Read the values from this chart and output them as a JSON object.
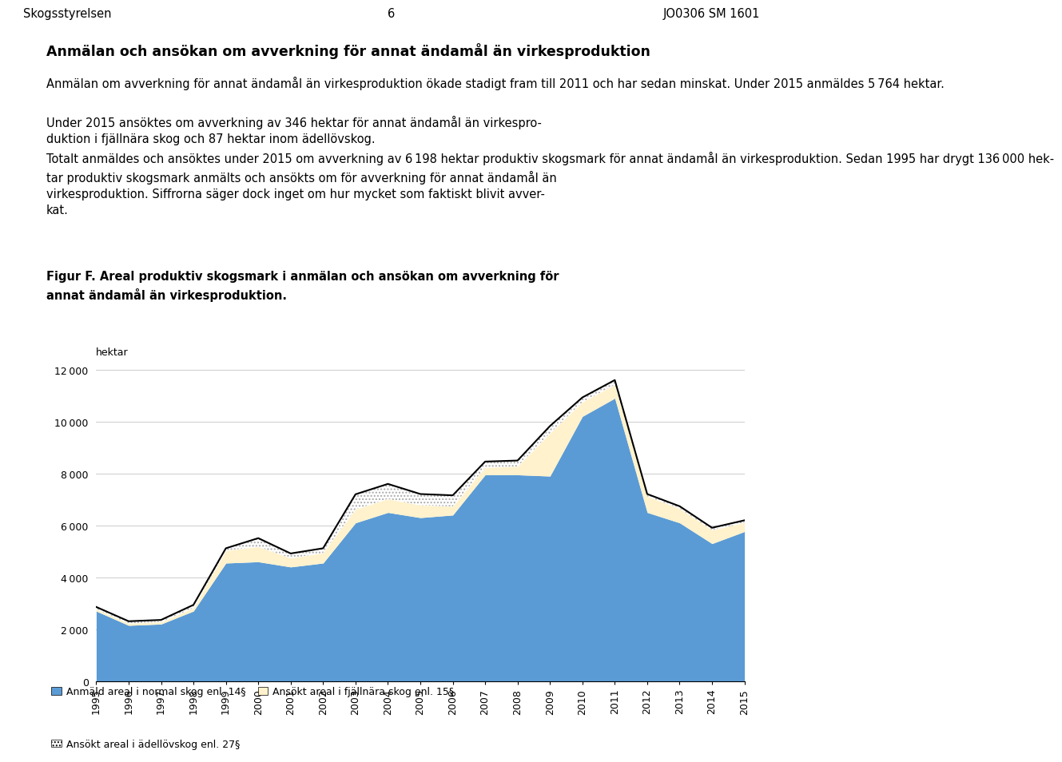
{
  "years": [
    1995,
    1996,
    1997,
    1998,
    1999,
    2000,
    2001,
    2002,
    2003,
    2004,
    2005,
    2006,
    2007,
    2008,
    2009,
    2010,
    2011,
    2012,
    2013,
    2014,
    2015
  ],
  "normal_skog": [
    2700,
    2150,
    2200,
    2700,
    4550,
    4600,
    4400,
    4550,
    6100,
    6500,
    6300,
    6400,
    7950,
    7950,
    7900,
    10200,
    10900,
    6500,
    6100,
    5300,
    5764
  ],
  "fjallnara_skog": [
    80,
    80,
    80,
    120,
    480,
    580,
    340,
    390,
    520,
    520,
    480,
    330,
    280,
    320,
    1650,
    550,
    520,
    620,
    550,
    520,
    346
  ],
  "adellövskog": [
    80,
    80,
    80,
    120,
    90,
    330,
    180,
    180,
    580,
    580,
    430,
    430,
    230,
    230,
    280,
    180,
    180,
    90,
    90,
    90,
    87
  ],
  "blue_color": "#5B9BD5",
  "yellow_color": "#FFF2CC",
  "ylim": [
    0,
    12000
  ],
  "yticks": [
    0,
    2000,
    4000,
    6000,
    8000,
    10000,
    12000
  ],
  "ylabel": "hektar",
  "header_left": "Skogsstyrelsen",
  "header_center": "6",
  "header_right": "JO0306 SM 1601",
  "title_bold": "Anmälan och ansökan om avverkning för annat ändamål än virkesproduktion",
  "body_text1": "Anmälan om avverkning för annat ändamål än virkesproduktion ökade stadigt fram till 2011 och har sedan minskat. Under 2015 anmäldes 5 764 hektar.",
  "body_text2": "Under 2015 ansöktes om avverkning av 346 hektar för annat ändamål än virkespro-\nduktion i fjällnära skog och 87 hektar inom ädellövskog.",
  "body_text3": "Totalt anmäldes och ansöktes under 2015 om avverkning av 6 198 hektar produktiv skogsmark för annat ändamål än virkesproduktion. Sedan 1995 har drygt 136 000 hek-\ntar produktiv skogsmark anmälts och ansökts om för avverkning för annat ändamål än\nvirkesproduktion. Siffrorna säger dock inget om hur mycket som faktiskt blivit avver-\nkat.",
  "figur_label_bold": "Figur F. Areal produktiv skogsmark i anmälan och ansökan om avverkning för\nannat ändamål än virkesproduktion.",
  "legend1": "Anmäld areal i normal skog enl. 14§",
  "legend2": "Ansökt areal i fjällnära skog enl. 15§",
  "legend3": "Ansökt areal i ädellövskog enl. 27§"
}
